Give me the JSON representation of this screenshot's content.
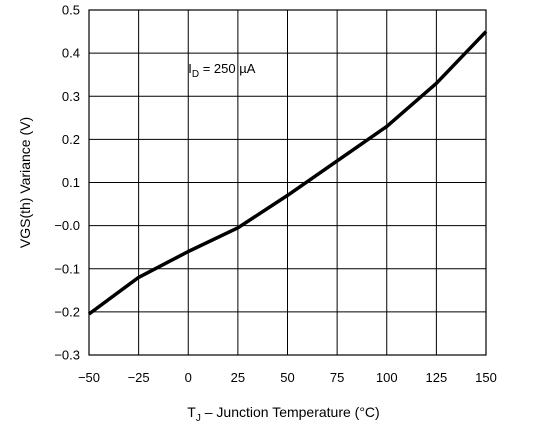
{
  "chart_data": {
    "type": "line",
    "title": "",
    "xlabel": {
      "main": "T",
      "sub": "J",
      "rest": " – Junction Temperature (°C)"
    },
    "ylabel": "VGS(th) Variance (V)",
    "xlim": [
      -50,
      150
    ],
    "ylim": [
      -0.3,
      0.5
    ],
    "x_ticks": [
      -50,
      -25,
      0,
      25,
      50,
      75,
      100,
      125,
      150
    ],
    "x_tick_labels": [
      "−50",
      "−25",
      "0",
      "25",
      "50",
      "75",
      "100",
      "125",
      "150"
    ],
    "y_ticks": [
      -0.3,
      -0.2,
      -0.1,
      0.0,
      0.1,
      0.2,
      0.3,
      0.4,
      0.5
    ],
    "y_tick_labels": [
      "−0.3",
      "−0.2",
      "−0.1",
      "−0.0",
      "0.1",
      "0.2",
      "0.3",
      "0.4",
      "0.5"
    ],
    "grid": true,
    "series": [
      {
        "color": "#000000",
        "x": [
          -50,
          -25,
          0,
          25,
          50,
          75,
          100,
          125,
          150
        ],
        "y": [
          -0.205,
          -0.12,
          -0.06,
          -0.005,
          0.07,
          0.15,
          0.23,
          0.33,
          0.45
        ]
      }
    ],
    "annotation": {
      "main": "I",
      "sub": "D",
      "rest": " = 250 µA",
      "anchor_x": 0,
      "anchor_y": 0.365
    }
  }
}
